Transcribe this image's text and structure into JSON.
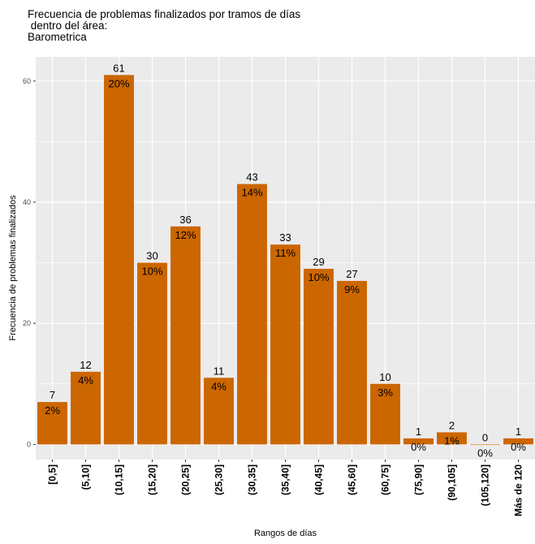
{
  "title_lines": [
    "Frecuencia de problemas finalizados por tramos de días",
    " dentro del área:",
    "Barometrica"
  ],
  "chart_data": {
    "type": "bar",
    "title": "Frecuencia de problemas finalizados por tramos de días\n dentro del área:\nBarometrica",
    "xlabel": "Rangos de días",
    "ylabel": "Frecuencia de problemas finalizados",
    "categories": [
      "[0,5]",
      "(5,10]",
      "(10,15]",
      "(15,20]",
      "(20,25]",
      "(25,30]",
      "(30,35]",
      "(35,40]",
      "(40,45]",
      "(45,60]",
      "(60,75]",
      "(75,90]",
      "(90,105]",
      "(105,120]",
      "Más de 120"
    ],
    "values": [
      7,
      12,
      61,
      30,
      36,
      11,
      43,
      33,
      29,
      27,
      10,
      1,
      2,
      0,
      1
    ],
    "percent_labels": [
      "2%",
      "4%",
      "20%",
      "10%",
      "12%",
      "4%",
      "14%",
      "11%",
      "10%",
      "9%",
      "3%",
      "0%",
      "1%",
      "0%",
      "0%"
    ],
    "ylim": [
      -2.5,
      64
    ],
    "yticks": [
      0,
      20,
      40,
      60
    ],
    "grid": true,
    "colors": {
      "bar": "#CC6600",
      "panel": "#EBEBEB",
      "grid": "#FFFFFF"
    }
  }
}
